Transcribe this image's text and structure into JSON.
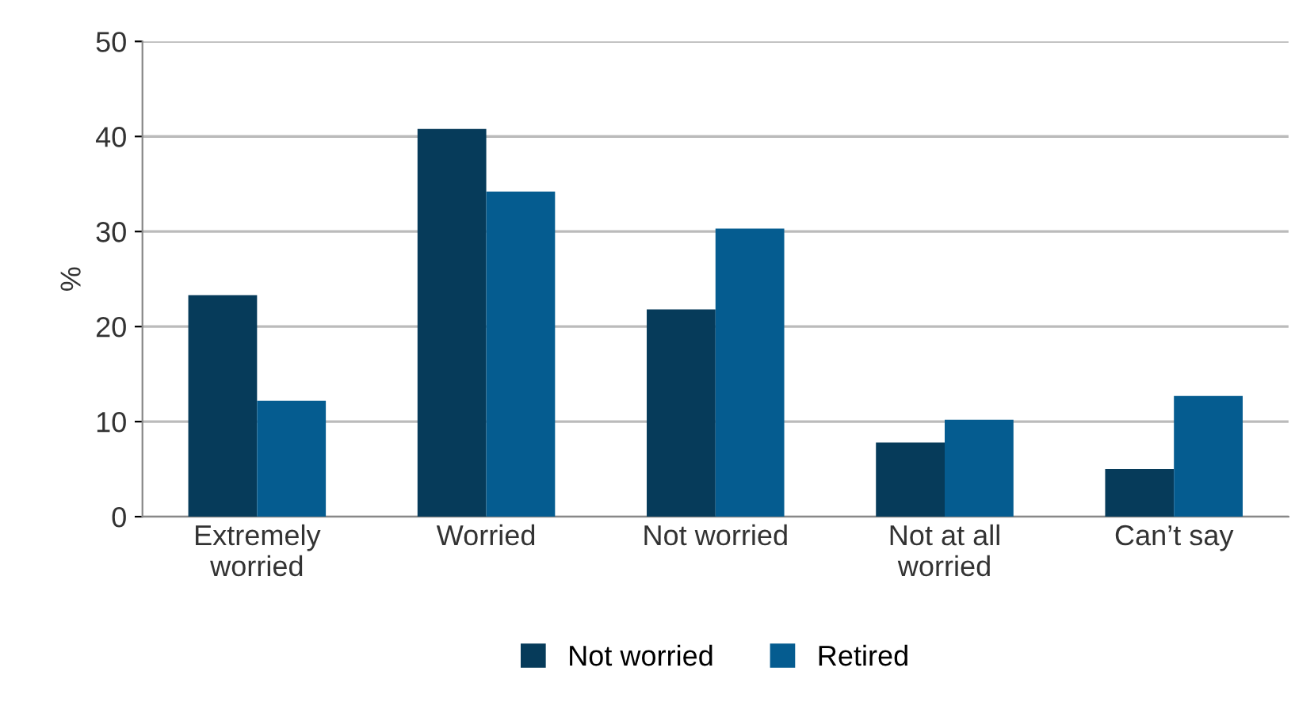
{
  "chart_data": {
    "type": "bar",
    "ylabel": "%",
    "categories": [
      "Extremely\nworried",
      "Worried",
      "Not worried",
      "Not at all\nworried",
      "Can’t say"
    ],
    "series": [
      {
        "name": "Not worried",
        "color": "#063b5a",
        "values": [
          23.3,
          40.8,
          21.8,
          7.8,
          5.0
        ]
      },
      {
        "name": "Retired",
        "color": "#055c90",
        "values": [
          12.2,
          34.2,
          30.3,
          10.2,
          12.7
        ]
      }
    ],
    "ylim": [
      0,
      50
    ],
    "yticks": [
      0,
      10,
      20,
      30,
      40,
      50
    ],
    "grid": "y",
    "legend": "bottom"
  }
}
